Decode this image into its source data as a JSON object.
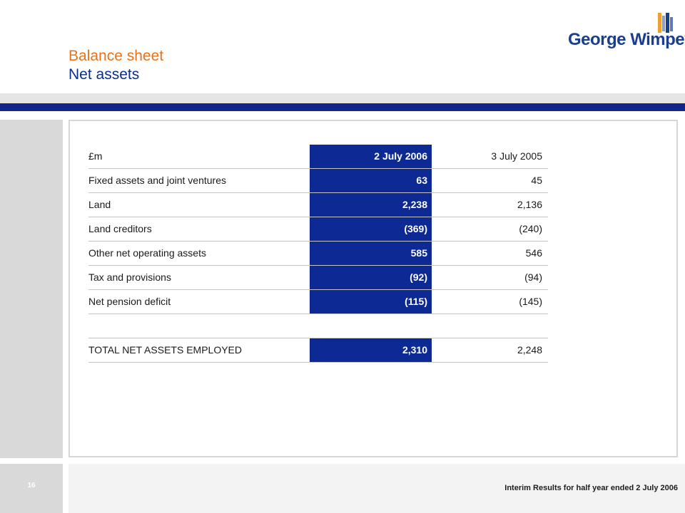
{
  "header": {
    "title": "Balance sheet",
    "subtitle": "Net assets",
    "logo_text": "George Wimpey"
  },
  "table": {
    "columns": {
      "label": "£m",
      "current": "2 July 2006",
      "previous": "3 July 2005"
    },
    "rows": [
      {
        "label": "Fixed assets and joint ventures",
        "current": "63",
        "previous": "45"
      },
      {
        "label": "Land",
        "current": "2,238",
        "previous": "2,136"
      },
      {
        "label": "Land creditors",
        "current": "(369)",
        "previous": "(240)"
      },
      {
        "label": "Other net operating assets",
        "current": "585",
        "previous": "546"
      },
      {
        "label": "Tax and provisions",
        "current": "(92)",
        "previous": "(94)"
      },
      {
        "label": "Net pension deficit",
        "current": "(115)",
        "previous": "(145)"
      }
    ],
    "total": {
      "label": "TOTAL NET ASSETS EMPLOYED",
      "current": "2,310",
      "previous": "2,248"
    }
  },
  "footer": {
    "page_number": "16",
    "text": "Interim Results for half year ended 2 July 2006"
  },
  "colors": {
    "title_orange": "#e8731a",
    "brand_blue": "#0d2a94",
    "band_blue": "#13268a"
  }
}
